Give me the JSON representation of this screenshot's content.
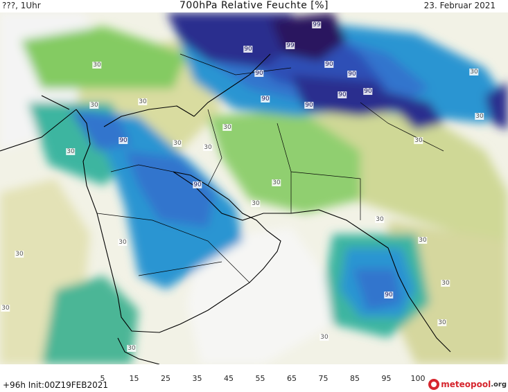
{
  "header": {
    "left_label": "???, 1Uhr",
    "title": "700hPa Relative Feuchte [%]",
    "date": "23. Februar 2021"
  },
  "footer": {
    "init_text": "+96h Init:00Z19FEB2021",
    "logo_text": "meteopool",
    "logo_suffix": ".org"
  },
  "colorbar": {
    "tick_labels": [
      "5",
      "15",
      "25",
      "35",
      "45",
      "55",
      "65",
      "75",
      "85",
      "95",
      "100"
    ],
    "colors": [
      "#f4f4f4",
      "#eeeedc",
      "#e3e2b6",
      "#cfd896",
      "#b4d77c",
      "#84cb62",
      "#3cb5a0",
      "#2a95d2",
      "#3174cd",
      "#2f4fb6",
      "#2a2d8e",
      "#2a145e"
    ]
  },
  "contour_labels": [
    {
      "text": "99",
      "c": "hi"
    },
    {
      "text": "99",
      "c": "hi"
    },
    {
      "text": "90",
      "c": "hi"
    },
    {
      "text": "90",
      "c": "hi"
    },
    {
      "text": "90",
      "c": "hi"
    },
    {
      "text": "90",
      "c": "hi"
    },
    {
      "text": "90",
      "c": "hi"
    },
    {
      "text": "90",
      "c": "hi"
    },
    {
      "text": "90",
      "c": "hi"
    },
    {
      "text": "90",
      "c": "hi"
    },
    {
      "text": "90",
      "c": "hi"
    },
    {
      "text": "90",
      "c": "hi"
    },
    {
      "text": "90",
      "c": "hi"
    },
    {
      "text": "30",
      "c": "lo"
    },
    {
      "text": "30",
      "c": "lo"
    },
    {
      "text": "30",
      "c": "lo"
    },
    {
      "text": "30",
      "c": "lo"
    },
    {
      "text": "30",
      "c": "lo"
    },
    {
      "text": "30",
      "c": "lo"
    },
    {
      "text": "30",
      "c": "lo"
    },
    {
      "text": "30",
      "c": "lo"
    },
    {
      "text": "30",
      "c": "lo"
    },
    {
      "text": "30",
      "c": "lo"
    },
    {
      "text": "30",
      "c": "lo"
    },
    {
      "text": "30",
      "c": "lo"
    },
    {
      "text": "30",
      "c": "lo"
    },
    {
      "text": "30",
      "c": "lo"
    },
    {
      "text": "30",
      "c": "lo"
    },
    {
      "text": "30",
      "c": "lo"
    },
    {
      "text": "30",
      "c": "lo"
    },
    {
      "text": "30",
      "c": "lo"
    },
    {
      "text": "30",
      "c": "lo"
    },
    {
      "text": "30",
      "c": "lo"
    },
    {
      "text": "30",
      "c": "lo"
    }
  ]
}
